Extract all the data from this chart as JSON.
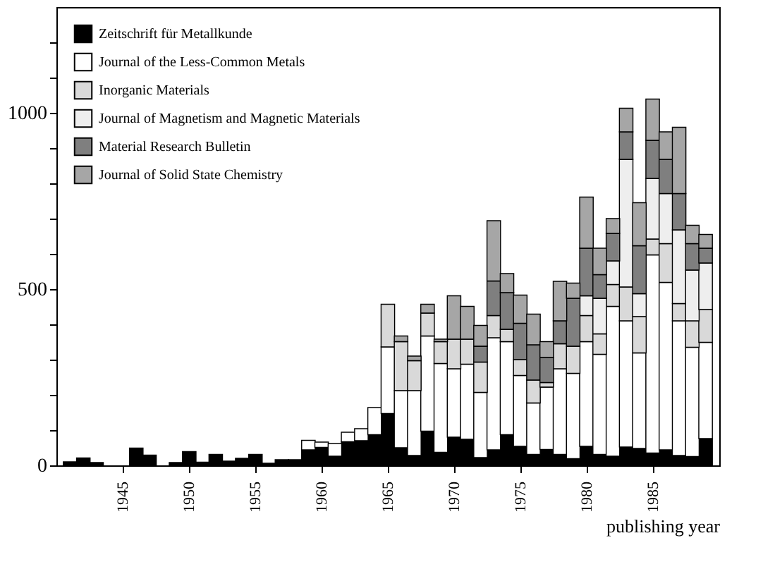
{
  "chart_data": {
    "type": "bar",
    "stacked": true,
    "xlabel": "publishing year",
    "x": [
      1941,
      1942,
      1943,
      1944,
      1945,
      1946,
      1947,
      1948,
      1949,
      1950,
      1951,
      1952,
      1953,
      1954,
      1955,
      1956,
      1957,
      1958,
      1959,
      1960,
      1961,
      1962,
      1963,
      1964,
      1965,
      1966,
      1967,
      1968,
      1969,
      1970,
      1971,
      1972,
      1973,
      1974,
      1975,
      1976,
      1977,
      1978,
      1979,
      1980,
      1981,
      1982,
      1983,
      1984,
      1985,
      1986,
      1987,
      1988,
      1989
    ],
    "series": [
      {
        "name": "Zeitschrift für Metallkunde",
        "color": "#000000",
        "values": [
          10,
          21,
          8,
          null,
          null,
          49,
          29,
          null,
          8,
          39,
          9,
          31,
          12,
          20,
          31,
          6,
          16,
          16,
          44,
          51,
          26,
          67,
          70,
          87,
          147,
          50,
          28,
          97,
          37,
          80,
          74,
          22,
          44,
          87,
          54,
          31,
          45,
          31,
          19,
          54,
          31,
          26,
          52,
          48,
          35,
          44,
          28,
          25,
          76
        ]
      },
      {
        "name": "Journal of the Less-Common Metals",
        "color": "#ffffff",
        "values": [
          null,
          null,
          null,
          null,
          null,
          null,
          null,
          null,
          null,
          null,
          null,
          null,
          null,
          null,
          null,
          null,
          null,
          null,
          27,
          15,
          36,
          27,
          34,
          77,
          189,
          162,
          184,
          270,
          252,
          194,
          213,
          185,
          318,
          264,
          201,
          146,
          177,
          243,
          242,
          297,
          284,
          425,
          358,
          271,
          562,
          475,
          382,
          310,
          273
        ]
      },
      {
        "name": "Inorganic Materials",
        "color": "#d9d9d9",
        "values": [
          null,
          null,
          null,
          null,
          null,
          null,
          null,
          null,
          null,
          null,
          null,
          null,
          null,
          null,
          null,
          null,
          null,
          null,
          null,
          null,
          null,
          null,
          null,
          null,
          121,
          139,
          85,
          65,
          62,
          84,
          71,
          86,
          63,
          35,
          45,
          65,
          13,
          71,
          77,
          74,
          58,
          62,
          96,
          103,
          45,
          110,
          49,
          75,
          93
        ]
      },
      {
        "name": "Journal of Magnetism and Magnetic Materials",
        "color": "#eeeeee",
        "values": [
          null,
          null,
          null,
          null,
          null,
          null,
          null,
          null,
          null,
          null,
          null,
          null,
          null,
          null,
          null,
          null,
          null,
          null,
          null,
          null,
          null,
          null,
          null,
          null,
          null,
          null,
          null,
          null,
          null,
          null,
          null,
          null,
          null,
          null,
          null,
          null,
          null,
          null,
          null,
          56,
          101,
          67,
          362,
          65,
          172,
          142,
          209,
          144,
          132
        ]
      },
      {
        "name": "Material Research Bulletin",
        "color": "#7f7f7f",
        "values": [
          null,
          null,
          null,
          null,
          null,
          null,
          null,
          null,
          null,
          null,
          null,
          null,
          null,
          null,
          null,
          null,
          null,
          null,
          null,
          null,
          null,
          null,
          null,
          null,
          null,
          null,
          null,
          null,
          null,
          null,
          null,
          45,
          98,
          104,
          103,
          100,
          71,
          65,
          136,
          135,
          67,
          78,
          78,
          136,
          108,
          97,
          103,
          75,
          42
        ]
      },
      {
        "name": "Journal of Solid State Chemistry",
        "color": "#a6a6a6",
        "values": [
          null,
          null,
          null,
          null,
          null,
          null,
          null,
          null,
          null,
          null,
          null,
          null,
          null,
          null,
          null,
          null,
          null,
          null,
          null,
          null,
          null,
          null,
          null,
          null,
          null,
          16,
          13,
          25,
          7,
          123,
          93,
          59,
          171,
          54,
          80,
          87,
          45,
          112,
          43,
          145,
          75,
          42,
          67,
          122,
          117,
          78,
          188,
          52,
          39
        ]
      }
    ],
    "xlim": [
      1940.5,
      1989.5
    ],
    "xticks": [
      1945,
      1950,
      1955,
      1960,
      1965,
      1970,
      1975,
      1980,
      1985
    ],
    "ylim": [
      0,
      1300
    ],
    "yticks": [
      0,
      {
        "value": 100,
        "label": null
      },
      {
        "value": 200,
        "label": null
      },
      {
        "value": 300,
        "label": null
      },
      {
        "value": 400,
        "label": null
      },
      500,
      {
        "value": 600,
        "label": null
      },
      {
        "value": 700,
        "label": null
      },
      {
        "value": 800,
        "label": null
      },
      {
        "value": 900,
        "label": null
      },
      1000,
      {
        "value": 1100,
        "label": null
      },
      {
        "value": 1200,
        "label": null
      }
    ],
    "legend": "top left",
    "grid": false
  }
}
